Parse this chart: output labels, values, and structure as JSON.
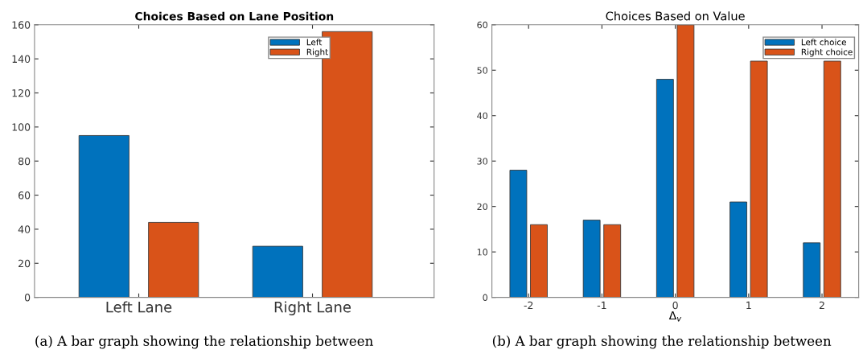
{
  "chart_data": [
    {
      "type": "bar",
      "title": "Choices Based on Lane Position",
      "categories": [
        "Left Lane",
        "Right Lane"
      ],
      "series": [
        {
          "name": "Left",
          "color": "#0072bd",
          "values": [
            95,
            30
          ]
        },
        {
          "name": "Right",
          "color": "#d95319",
          "values": [
            44,
            156
          ]
        }
      ],
      "ylim": [
        0,
        160
      ],
      "yticks": [
        0,
        20,
        40,
        60,
        80,
        100,
        120,
        140,
        160
      ],
      "legend": "top right",
      "grid": false,
      "annotations": [
        "(a) A bar graph showing the relationship between"
      ]
    },
    {
      "type": "bar",
      "title": "Choices Based on Value",
      "xlabel": "Δ$_{v}$",
      "categories": [
        "-2",
        "-1",
        "0",
        "1",
        "2"
      ],
      "series": [
        {
          "name": "Left choice",
          "color": "#0072bd",
          "values": [
            28,
            17,
            48,
            21,
            12
          ]
        },
        {
          "name": "Right choice",
          "color": "#d95319",
          "values": [
            16,
            16,
            60,
            52,
            52
          ]
        }
      ],
      "ylim": [
        0,
        60
      ],
      "yticks": [
        0,
        10,
        20,
        30,
        40,
        50,
        60
      ],
      "legend": "top right",
      "grid": false,
      "annotations": [
        "(b) A bar graph showing the relationship between"
      ]
    }
  ]
}
